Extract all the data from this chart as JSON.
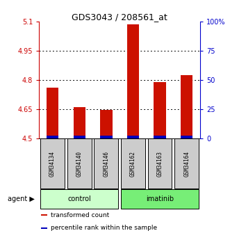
{
  "title": "GDS3043 / 208561_at",
  "samples": [
    "GSM34134",
    "GSM34140",
    "GSM34146",
    "GSM34162",
    "GSM34163",
    "GSM34164"
  ],
  "groups": [
    "control",
    "control",
    "control",
    "imatinib",
    "imatinib",
    "imatinib"
  ],
  "red_values": [
    4.76,
    4.66,
    4.645,
    5.085,
    4.79,
    4.825
  ],
  "blue_values": [
    4.513,
    4.511,
    4.512,
    4.514,
    4.512,
    4.512
  ],
  "bar_base": 4.5,
  "ylim_left": [
    4.5,
    5.1
  ],
  "ylim_right": [
    0,
    100
  ],
  "yticks_left": [
    4.5,
    4.65,
    4.8,
    4.95,
    5.1
  ],
  "yticks_right": [
    0,
    25,
    50,
    75,
    100
  ],
  "ytick_labels_left": [
    "4.5",
    "4.65",
    "4.8",
    "4.95",
    "5.1"
  ],
  "ytick_labels_right": [
    "0",
    "25",
    "50",
    "75",
    "100%"
  ],
  "grid_values": [
    4.65,
    4.8,
    4.95
  ],
  "left_tick_color": "#cc0000",
  "right_tick_color": "#0000cc",
  "red_bar_color": "#cc1100",
  "blue_bar_color": "#0000bb",
  "legend_items": [
    {
      "label": "transformed count",
      "color": "#cc1100"
    },
    {
      "label": "percentile rank within the sample",
      "color": "#0000bb"
    }
  ],
  "bar_width": 0.45,
  "control_color": "#ccffcc",
  "imatinib_color": "#77ee77",
  "sample_box_color": "#cccccc",
  "fig_width": 3.31,
  "fig_height": 3.45,
  "dpi": 100
}
